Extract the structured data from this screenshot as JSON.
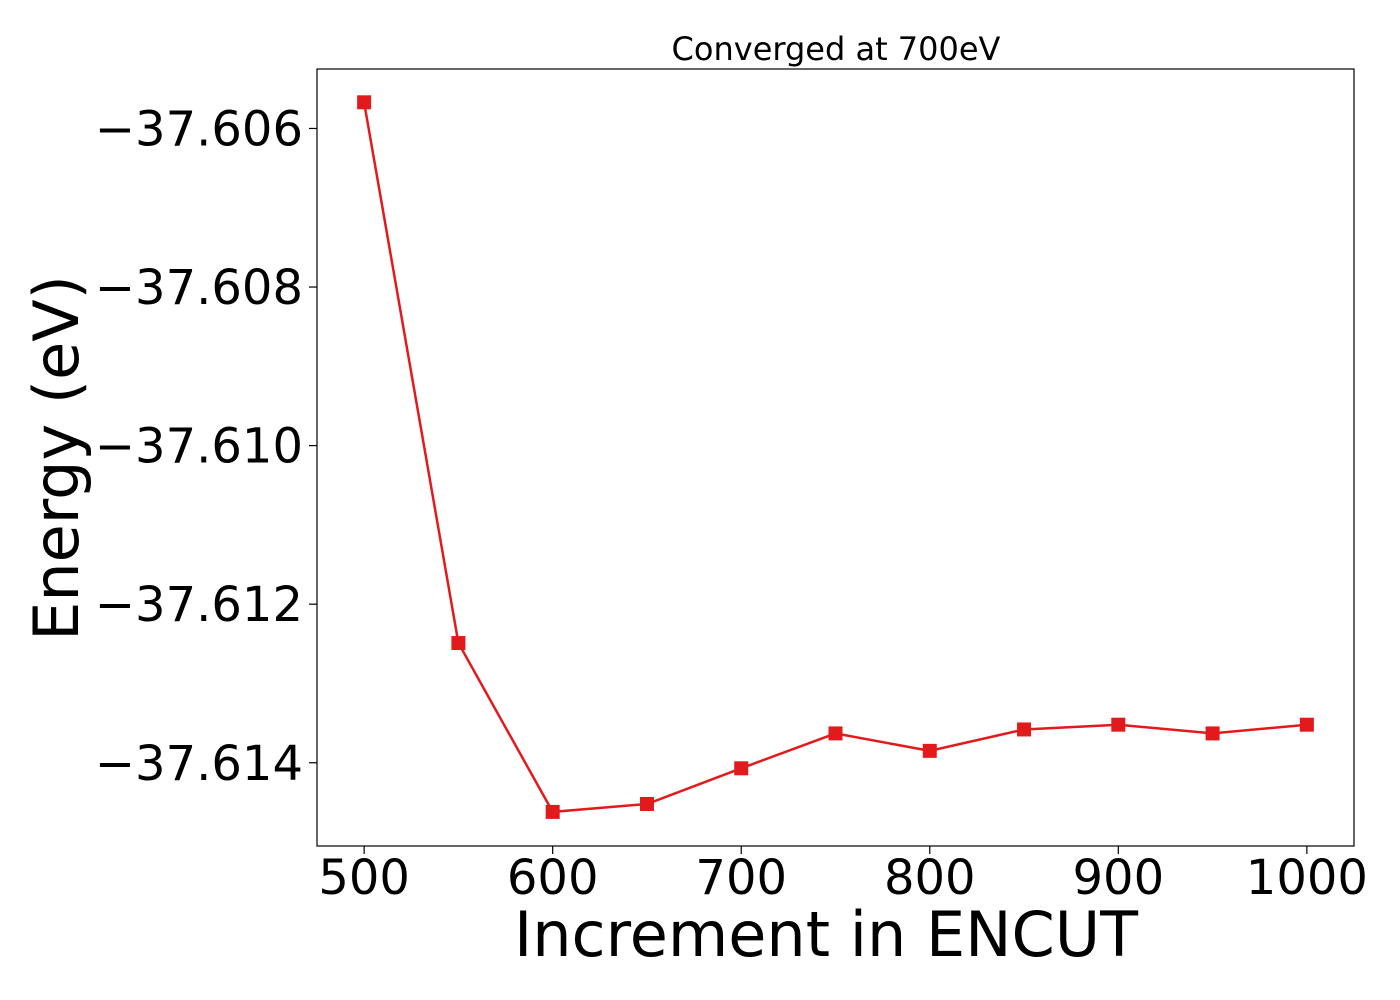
{
  "chart_data": {
    "type": "line",
    "title": "Converged at 700eV",
    "xlabel": "Increment in ENCUT",
    "ylabel": "Energy (eV)",
    "x": [
      500,
      550,
      600,
      650,
      700,
      750,
      800,
      850,
      900,
      950,
      1000
    ],
    "series": [
      {
        "values": [
          -37.60567,
          -37.61249,
          -37.61462,
          -37.61452,
          -37.61407,
          -37.61363,
          -37.61385,
          -37.61358,
          -37.61352,
          -37.61363,
          -37.61352
        ],
        "color": "#e31a1c",
        "marker": "square"
      }
    ],
    "xlim": [
      475,
      1025
    ],
    "ylim": [
      -37.61505,
      -37.60525
    ],
    "xticks": [
      500,
      600,
      700,
      800,
      900,
      1000
    ],
    "xtick_labels": [
      "500",
      "600",
      "700",
      "800",
      "900",
      "1000"
    ],
    "yticks": [
      -37.614,
      -37.612,
      -37.61,
      -37.608,
      -37.606
    ],
    "ytick_labels": [
      "−37.614",
      "−37.612",
      "−37.610",
      "−37.608",
      "−37.606"
    ],
    "grid": false,
    "legend": false
  }
}
